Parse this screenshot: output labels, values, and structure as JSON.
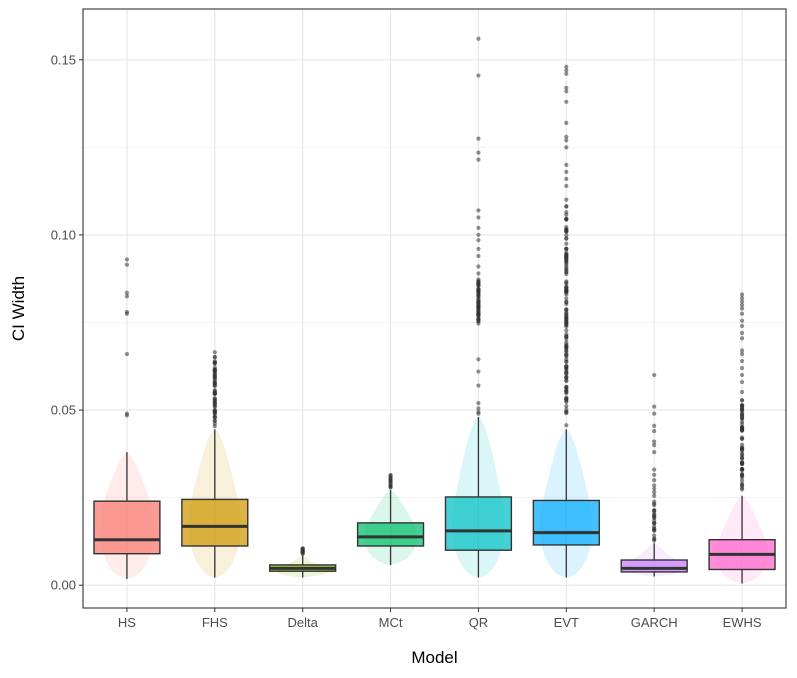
{
  "chart_data": {
    "type": "boxplot",
    "xlabel": "Model",
    "ylabel": "CI Width",
    "ylim": [
      -0.0065,
      0.1645
    ],
    "yticks": [
      0.0,
      0.05,
      0.1,
      0.15
    ],
    "ytick_labels": [
      "0.00",
      "0.05",
      "0.10",
      "0.15"
    ],
    "grid": true,
    "categories": [
      "HS",
      "FHS",
      "Delta",
      "MCt",
      "QR",
      "EVT",
      "GARCH",
      "EWHS"
    ],
    "colors": [
      "#F8766D",
      "#CD9600",
      "#7CAE00",
      "#00BE67",
      "#00BFC4",
      "#00A9FF",
      "#C77CFF",
      "#FF61CC"
    ],
    "boxes": [
      {
        "name": "HS",
        "lower": 0.0018,
        "q1": 0.009,
        "median": 0.013,
        "q3": 0.024,
        "upper": 0.038,
        "outliers": [
          0.093,
          0.0915,
          0.0835,
          0.0825,
          0.078,
          0.0775,
          0.066,
          0.049,
          0.0485
        ]
      },
      {
        "name": "FHS",
        "lower": 0.0022,
        "q1": 0.0112,
        "median": 0.0168,
        "q3": 0.0245,
        "upper": 0.0445,
        "outlier_range": [
          0.045,
          0.0665
        ],
        "outlier_count": 60,
        "outliers": [
          0.0665
        ]
      },
      {
        "name": "Delta",
        "lower": 0.0022,
        "q1": 0.004,
        "median": 0.0048,
        "q3": 0.0058,
        "upper": 0.0085,
        "outlier_range": [
          0.0088,
          0.0108
        ],
        "outlier_count": 10,
        "outliers": []
      },
      {
        "name": "MCt",
        "lower": 0.0058,
        "q1": 0.0112,
        "median": 0.0138,
        "q3": 0.0178,
        "upper": 0.0272,
        "outlier_range": [
          0.0275,
          0.0318
        ],
        "outlier_count": 14,
        "outliers": []
      },
      {
        "name": "QR",
        "lower": 0.0022,
        "q1": 0.01,
        "median": 0.0155,
        "q3": 0.0252,
        "upper": 0.048,
        "outlier_range": [
          0.074,
          0.088
        ],
        "outlier_count": 60,
        "outliers": [
          0.156,
          0.1455,
          0.1275,
          0.1235,
          0.1215,
          0.107,
          0.105,
          0.102,
          0.1,
          0.0985,
          0.096,
          0.094,
          0.091,
          0.089,
          0.0645,
          0.061,
          0.057,
          0.052,
          0.0505,
          0.0495,
          0.049
        ]
      },
      {
        "name": "EVT",
        "lower": 0.0022,
        "q1": 0.0115,
        "median": 0.015,
        "q3": 0.0242,
        "upper": 0.0445,
        "outlier_range": [
          0.045,
          0.111
        ],
        "outlier_count": 140,
        "outliers": [
          0.148,
          0.147,
          0.146,
          0.142,
          0.141,
          0.138,
          0.132,
          0.128,
          0.127,
          0.125,
          0.12,
          0.118,
          0.116,
          0.114
        ]
      },
      {
        "name": "GARCH",
        "lower": 0.0025,
        "q1": 0.0038,
        "median": 0.0048,
        "q3": 0.0072,
        "upper": 0.012,
        "outlier_range": [
          0.0122,
          0.024
        ],
        "outlier_count": 24,
        "outliers": [
          0.06,
          0.051,
          0.049,
          0.0455,
          0.044,
          0.041,
          0.04,
          0.038,
          0.033,
          0.0315,
          0.03,
          0.0285,
          0.0275,
          0.0265,
          0.0255
        ]
      },
      {
        "name": "EWHS",
        "lower": 0.0005,
        "q1": 0.0045,
        "median": 0.0088,
        "q3": 0.013,
        "upper": 0.0255,
        "outlier_range": [
          0.026,
          0.056
        ],
        "outlier_count": 70,
        "outliers": [
          0.083,
          0.082,
          0.081,
          0.08,
          0.079,
          0.0775,
          0.0755,
          0.074,
          0.072,
          0.0705,
          0.067,
          0.066,
          0.064,
          0.062,
          0.06,
          0.058
        ]
      }
    ]
  }
}
